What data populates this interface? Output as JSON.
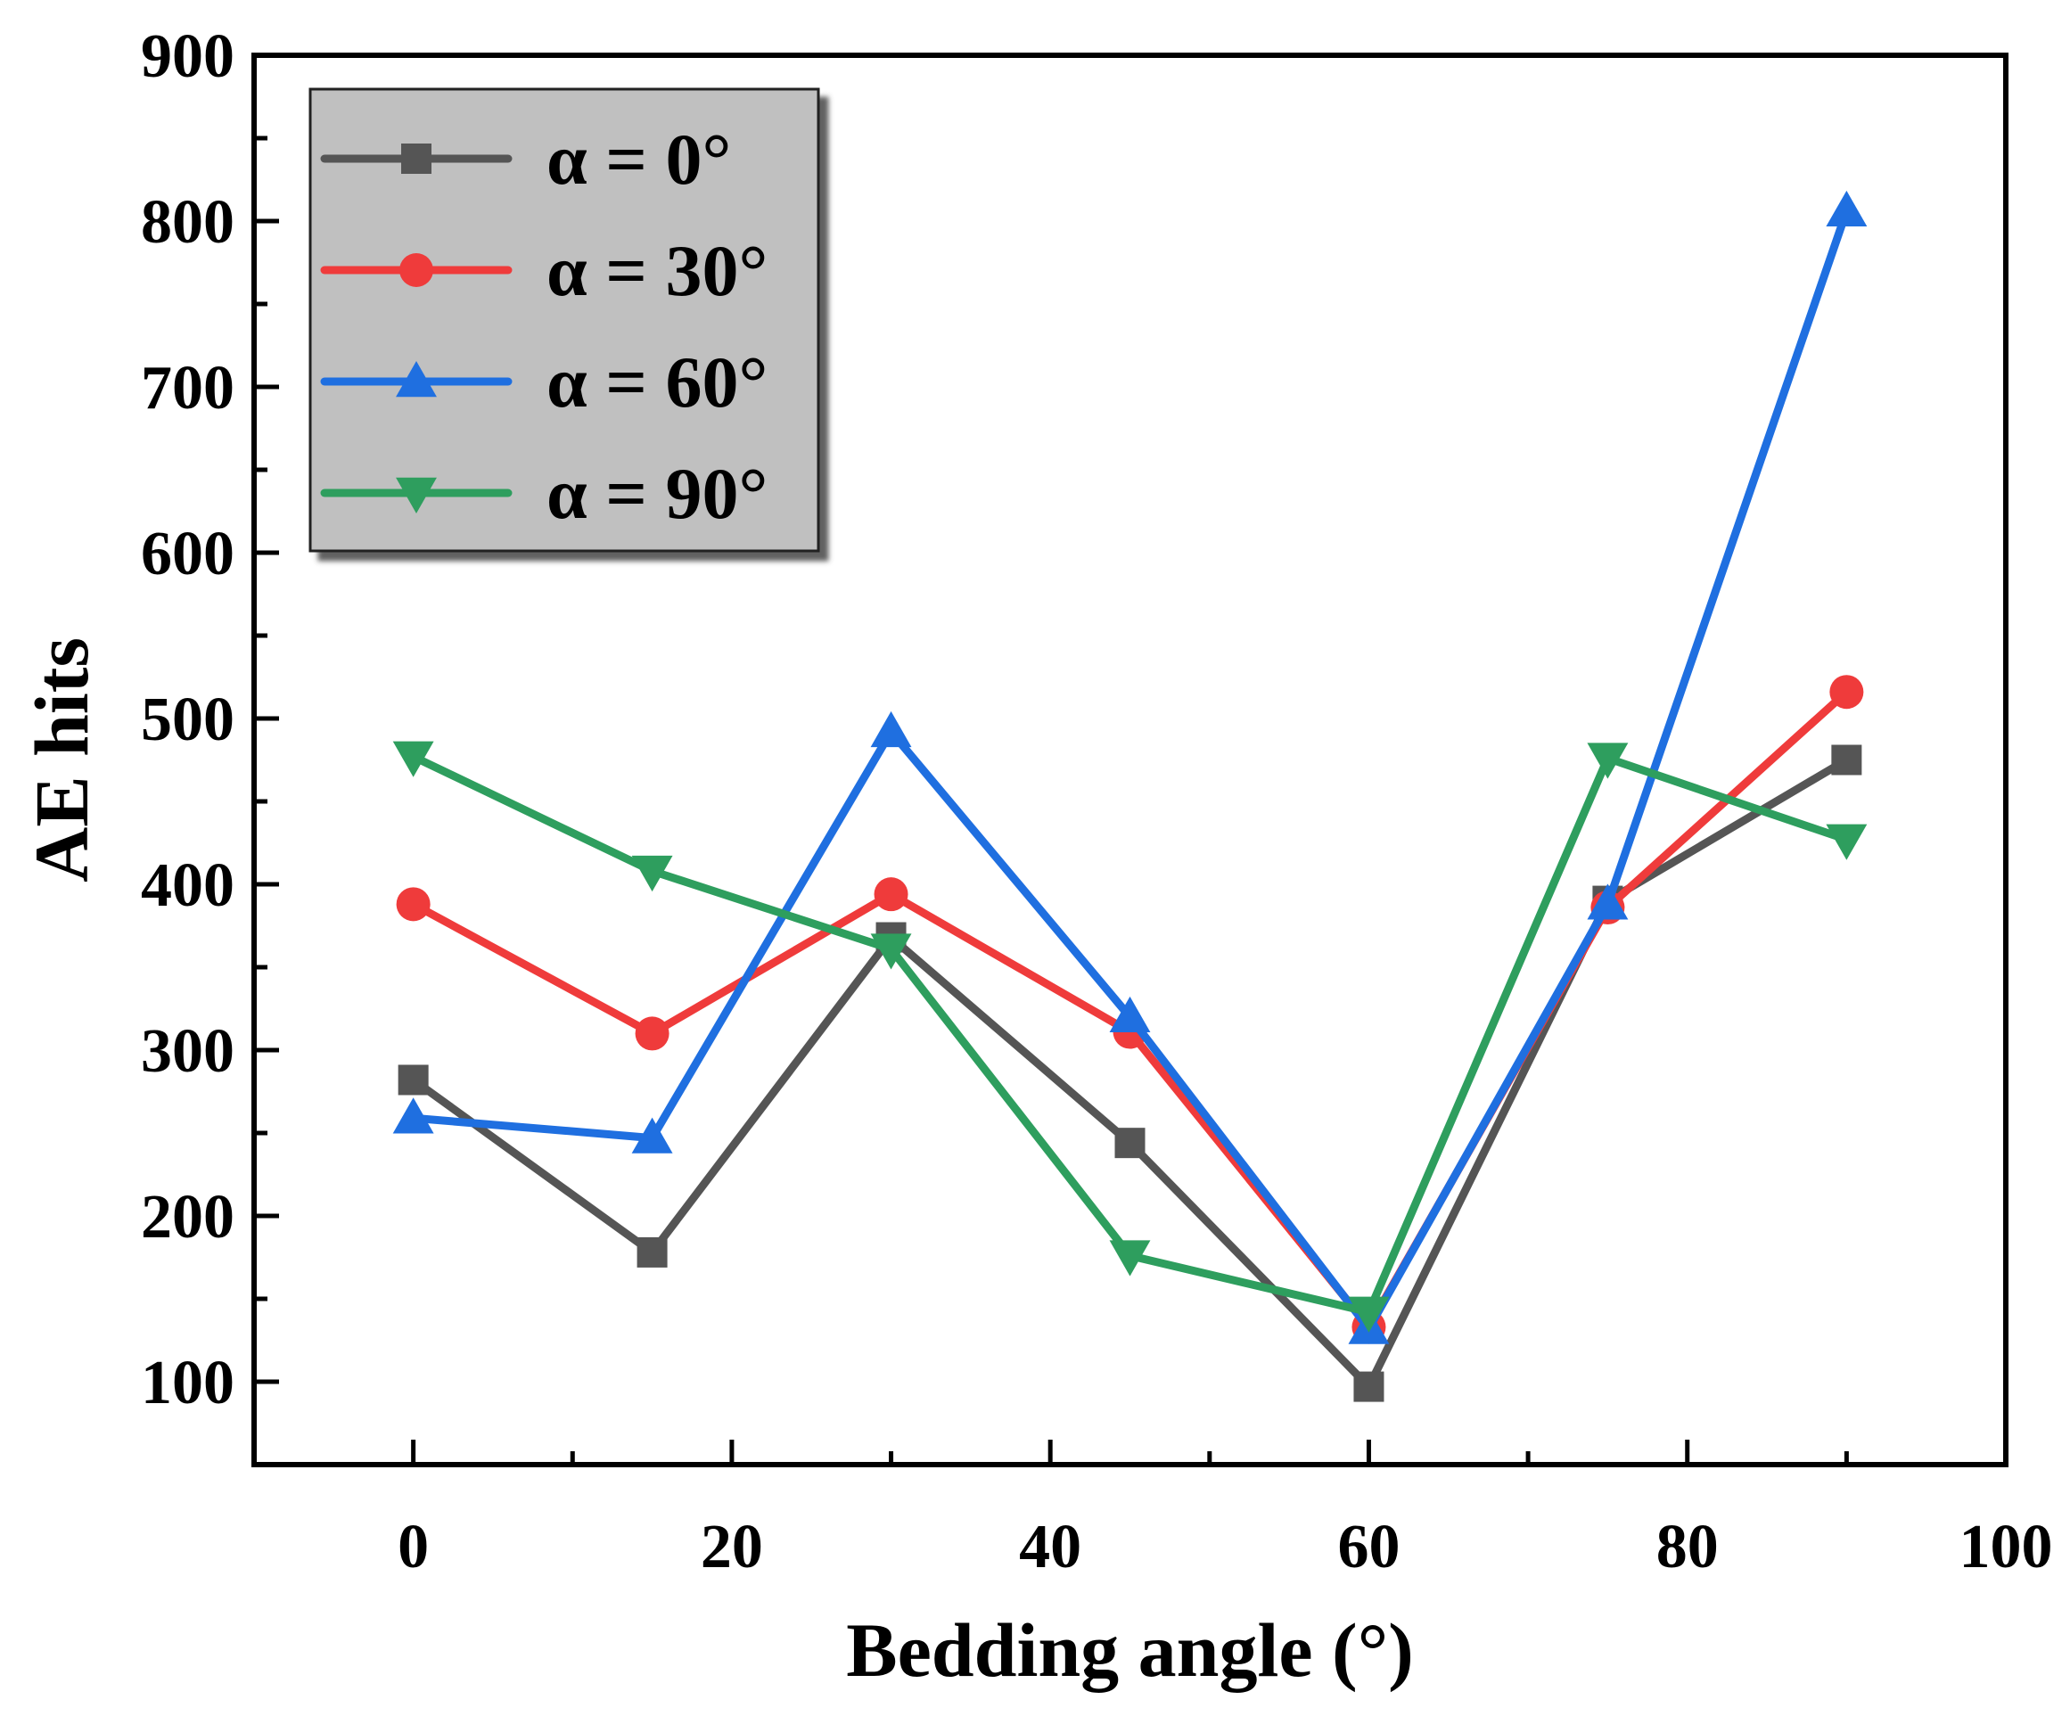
{
  "chart_data": {
    "type": "line",
    "title": "",
    "xlabel": "Bedding angle (°)",
    "ylabel": "AE hits",
    "xlim": [
      -10,
      100
    ],
    "ylim": [
      50,
      900
    ],
    "x_ticks": [
      0,
      20,
      40,
      60,
      80,
      100
    ],
    "y_ticks": [
      100,
      200,
      300,
      400,
      500,
      600,
      700,
      800,
      900
    ],
    "x_tick_labels": [
      "0",
      "20",
      "40",
      "60",
      "80",
      "100"
    ],
    "y_tick_labels": [
      "100",
      "200",
      "300",
      "400",
      "500",
      "600",
      "700",
      "800",
      "900"
    ],
    "grid": false,
    "legend_position": "top-left",
    "x": [
      0,
      15,
      30,
      45,
      60,
      75,
      90
    ],
    "series": [
      {
        "name": "α = 0°",
        "color": "#555555",
        "marker": "square",
        "values": [
          282,
          178,
          368,
          244,
          97,
          390,
          475
        ]
      },
      {
        "name": "α = 30°",
        "color": "#ef3b3b",
        "marker": "circle",
        "values": [
          388,
          310,
          394,
          311,
          133,
          386,
          516
        ]
      },
      {
        "name": "α = 60°",
        "color": "#1f6fe0",
        "marker": "triangle-up",
        "values": [
          259,
          247,
          492,
          320,
          132,
          388,
          806
        ]
      },
      {
        "name": "α = 90°",
        "color": "#2e9e5e",
        "marker": "triangle-down",
        "values": [
          477,
          408,
          361,
          176,
          142,
          476,
          427
        ]
      }
    ]
  }
}
